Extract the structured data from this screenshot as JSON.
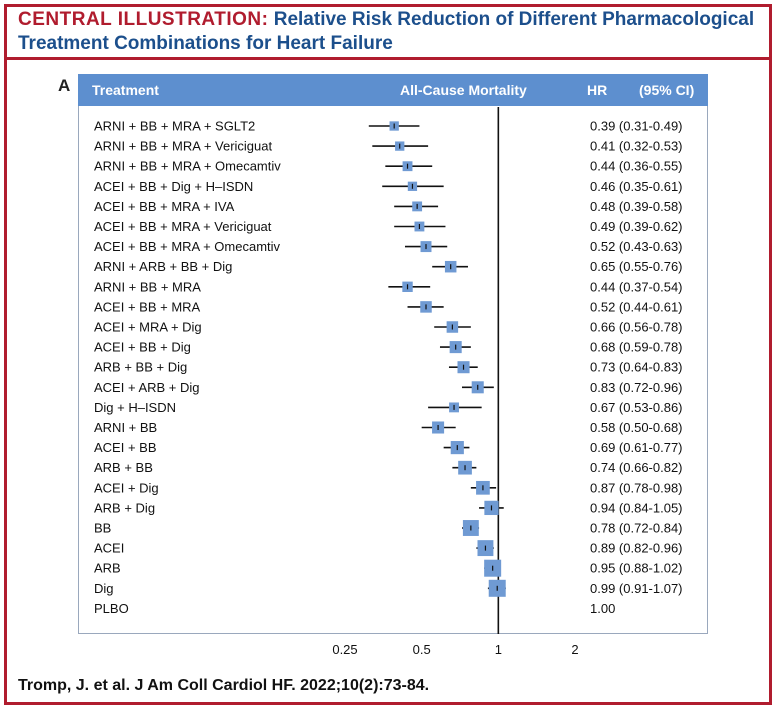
{
  "header": {
    "lead": "CENTRAL ILLUSTRATION:",
    "title": "Relative Risk Reduction of Different Pharmacological Treatment Combinations for Heart Failure"
  },
  "panel": "A",
  "columns": {
    "treatment": "Treatment",
    "outcome": "All-Cause Mortality",
    "hr": "HR",
    "ci": "(95% CI)"
  },
  "citation": "Tromp, J. et al. J Am Coll Cardiol HF. 2022;10(2):73-84.",
  "colors": {
    "accent": "#b01c2e",
    "title": "#1c4f8c",
    "header": "#5d8fcf",
    "marker": "#6f9ad3"
  },
  "chart_data": {
    "type": "forest",
    "title": "All-Cause Mortality",
    "x_scale": "log",
    "xlim": [
      0.25,
      2
    ],
    "reference": 1,
    "ticks": [
      {
        "value": 0.25,
        "label": "0.25"
      },
      {
        "value": 0.5,
        "label": "0.5"
      },
      {
        "value": 1,
        "label": "1"
      },
      {
        "value": 2,
        "label": "2"
      }
    ],
    "rows": [
      {
        "treatment": "ARNI + BB + MRA + SGLT2",
        "hr": 0.39,
        "lo": 0.31,
        "hi": 0.49,
        "weight": 0.3,
        "label": "0.39 (0.31-0.49)"
      },
      {
        "treatment": "ARNI + BB + MRA + Vericiguat",
        "hr": 0.41,
        "lo": 0.32,
        "hi": 0.53,
        "weight": 0.3,
        "label": "0.41 (0.32-0.53)"
      },
      {
        "treatment": "ARNI + BB + MRA + Omecamtiv",
        "hr": 0.44,
        "lo": 0.36,
        "hi": 0.55,
        "weight": 0.35,
        "label": "0.44 (0.36-0.55)"
      },
      {
        "treatment": "ACEI + BB + Dig + H–ISDN",
        "hr": 0.46,
        "lo": 0.35,
        "hi": 0.61,
        "weight": 0.3,
        "label": "0.46 (0.35-0.61)"
      },
      {
        "treatment": "ACEI + BB + MRA + IVA",
        "hr": 0.48,
        "lo": 0.39,
        "hi": 0.58,
        "weight": 0.35,
        "label": "0.48 (0.39-0.58)"
      },
      {
        "treatment": "ACEI + BB + MRA + Vericiguat",
        "hr": 0.49,
        "lo": 0.39,
        "hi": 0.62,
        "weight": 0.35,
        "label": "0.49 (0.39-0.62)"
      },
      {
        "treatment": "ACEI + BB + MRA + Omecamtiv",
        "hr": 0.52,
        "lo": 0.43,
        "hi": 0.63,
        "weight": 0.45,
        "label": "0.52 (0.43-0.63)"
      },
      {
        "treatment": "ARNI + ARB + BB + Dig",
        "hr": 0.65,
        "lo": 0.55,
        "hi": 0.76,
        "weight": 0.5,
        "label": "0.65 (0.55-0.76)"
      },
      {
        "treatment": "ARNI + BB + MRA",
        "hr": 0.44,
        "lo": 0.37,
        "hi": 0.54,
        "weight": 0.4,
        "label": "0.44 (0.37-0.54)"
      },
      {
        "treatment": "ACEI + BB + MRA",
        "hr": 0.52,
        "lo": 0.44,
        "hi": 0.61,
        "weight": 0.5,
        "label": "0.52 (0.44-0.61)"
      },
      {
        "treatment": "ACEI + MRA + Dig",
        "hr": 0.66,
        "lo": 0.56,
        "hi": 0.78,
        "weight": 0.5,
        "label": "0.66 (0.56-0.78)"
      },
      {
        "treatment": "ACEI + BB + Dig",
        "hr": 0.68,
        "lo": 0.59,
        "hi": 0.78,
        "weight": 0.55,
        "label": "0.68 (0.59-0.78)"
      },
      {
        "treatment": "ARB + BB + Dig",
        "hr": 0.73,
        "lo": 0.64,
        "hi": 0.83,
        "weight": 0.55,
        "label": "0.73 (0.64-0.83)"
      },
      {
        "treatment": "ACEI + ARB + Dig",
        "hr": 0.83,
        "lo": 0.72,
        "hi": 0.96,
        "weight": 0.55,
        "label": "0.83 (0.72-0.96)"
      },
      {
        "treatment": "Dig + H–ISDN",
        "hr": 0.67,
        "lo": 0.53,
        "hi": 0.86,
        "weight": 0.35,
        "label": "0.67 (0.53-0.86)"
      },
      {
        "treatment": "ARNI + BB",
        "hr": 0.58,
        "lo": 0.5,
        "hi": 0.68,
        "weight": 0.55,
        "label": "0.58 (0.50-0.68)"
      },
      {
        "treatment": "ACEI + BB",
        "hr": 0.69,
        "lo": 0.61,
        "hi": 0.77,
        "weight": 0.65,
        "label": "0.69 (0.61-0.77)"
      },
      {
        "treatment": "ARB + BB",
        "hr": 0.74,
        "lo": 0.66,
        "hi": 0.82,
        "weight": 0.7,
        "label": "0.74 (0.66-0.82)"
      },
      {
        "treatment": "ACEI + Dig",
        "hr": 0.87,
        "lo": 0.78,
        "hi": 0.98,
        "weight": 0.7,
        "label": "0.87 (0.78-0.98)"
      },
      {
        "treatment": "ARB + Dig",
        "hr": 0.94,
        "lo": 0.84,
        "hi": 1.05,
        "weight": 0.75,
        "label": "0.94 (0.84-1.05)"
      },
      {
        "treatment": "BB",
        "hr": 0.78,
        "lo": 0.72,
        "hi": 0.84,
        "weight": 0.9,
        "label": "0.78 (0.72-0.84)"
      },
      {
        "treatment": "ACEI",
        "hr": 0.89,
        "lo": 0.82,
        "hi": 0.96,
        "weight": 0.9,
        "label": "0.89 (0.82-0.96)"
      },
      {
        "treatment": "ARB",
        "hr": 0.95,
        "lo": 0.88,
        "hi": 1.02,
        "weight": 1.0,
        "label": "0.95 (0.88-1.02)"
      },
      {
        "treatment": "Dig",
        "hr": 0.99,
        "lo": 0.91,
        "hi": 1.07,
        "weight": 1.0,
        "label": "0.99 (0.91-1.07)"
      },
      {
        "treatment": "PLBO",
        "hr": null,
        "lo": null,
        "hi": null,
        "weight": 0,
        "label": "1.00"
      }
    ]
  }
}
